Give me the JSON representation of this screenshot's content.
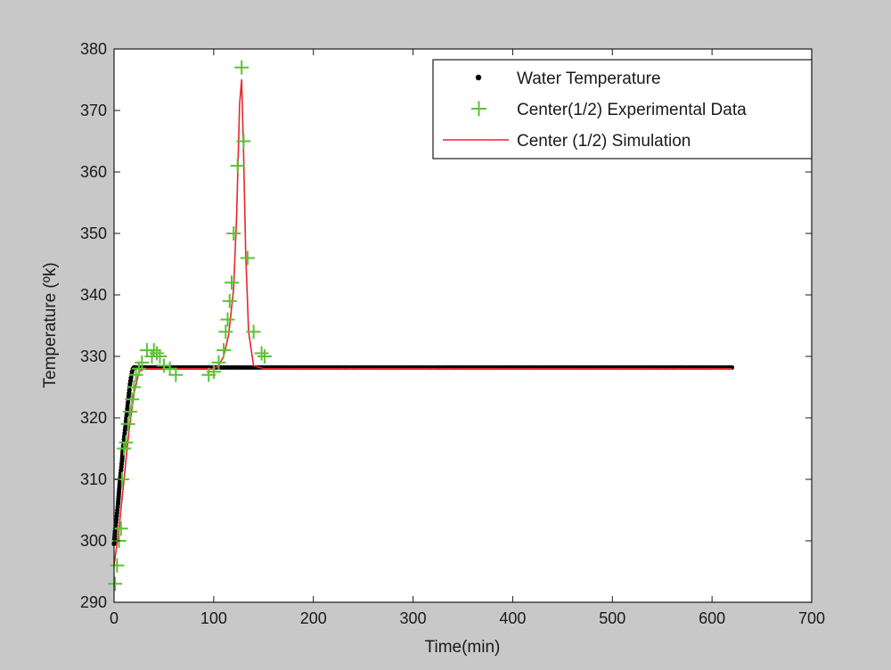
{
  "chart_data": {
    "type": "scatter",
    "title": "",
    "xlabel": "Time(min)",
    "ylabel": "Temperature (ºk)",
    "xlim": [
      0,
      700
    ],
    "ylim": [
      290,
      380
    ],
    "xticks": [
      0,
      100,
      200,
      300,
      400,
      500,
      600,
      700
    ],
    "yticks": [
      290,
      300,
      310,
      320,
      330,
      340,
      350,
      360,
      370,
      380
    ],
    "grid": false,
    "legend_position": "top-right",
    "series": [
      {
        "name": "Water Temperature",
        "mark": "point",
        "color": "#000000",
        "x": [
          0,
          1,
          2,
          3,
          4,
          5,
          6,
          7,
          8,
          9,
          10,
          11,
          12,
          13,
          14,
          15,
          16,
          17,
          18,
          19,
          20,
          22,
          25,
          30,
          40,
          50,
          60,
          70,
          80,
          90,
          100,
          110,
          120,
          130,
          140,
          150,
          200,
          250,
          300,
          350,
          400,
          450,
          500,
          550,
          600,
          620
        ],
        "y": [
          299.5,
          301.5,
          303,
          304.5,
          306,
          308,
          310,
          311.5,
          313,
          315,
          316.5,
          318,
          319.5,
          321,
          322.5,
          324,
          325.5,
          326.5,
          327.5,
          328,
          328.2,
          328.2,
          328.2,
          328.2,
          328.2,
          328.2,
          328.2,
          328.2,
          328.2,
          328.2,
          328.2,
          328.2,
          328.2,
          328.2,
          328.2,
          328.2,
          328.2,
          328.2,
          328.2,
          328.2,
          328.2,
          328.2,
          328.2,
          328.2,
          328.2,
          328.2
        ]
      },
      {
        "name": "Center(1/2) Experimental Data",
        "mark": "plus",
        "color": "#5cc134",
        "x": [
          1,
          3,
          5,
          7,
          8,
          10,
          12,
          14,
          16,
          18,
          20,
          22,
          25,
          28,
          33,
          38,
          40,
          43,
          46,
          50,
          56,
          62,
          95,
          100,
          105,
          110,
          112,
          114,
          116,
          118,
          120,
          124,
          128,
          130,
          134,
          140,
          148,
          151
        ],
        "y": [
          293,
          296,
          300,
          302,
          310,
          315,
          316,
          319,
          321,
          323,
          325,
          327,
          328,
          329,
          331,
          330,
          331,
          330.5,
          330,
          328.5,
          328,
          327,
          327,
          327.5,
          329,
          331,
          334,
          336,
          339,
          342,
          350,
          361,
          377,
          365,
          346,
          334,
          330.5,
          330
        ]
      },
      {
        "name": "Center (1/2) Simulation",
        "mark": "line",
        "color": "#e8262c",
        "x": [
          0,
          5,
          10,
          15,
          20,
          25,
          30,
          40,
          50,
          60,
          70,
          80,
          90,
          100,
          105,
          110,
          115,
          120,
          123,
          126,
          128,
          130,
          132,
          135,
          140,
          150,
          200,
          300,
          400,
          500,
          600,
          620
        ],
        "y": [
          296,
          302,
          310,
          318,
          324,
          327.5,
          328,
          328,
          328,
          328,
          328,
          328,
          328,
          328,
          328.5,
          330,
          333.5,
          341,
          353,
          371,
          375,
          363,
          347,
          334,
          328.5,
          328,
          328,
          328,
          328,
          328,
          328,
          328
        ]
      }
    ]
  }
}
